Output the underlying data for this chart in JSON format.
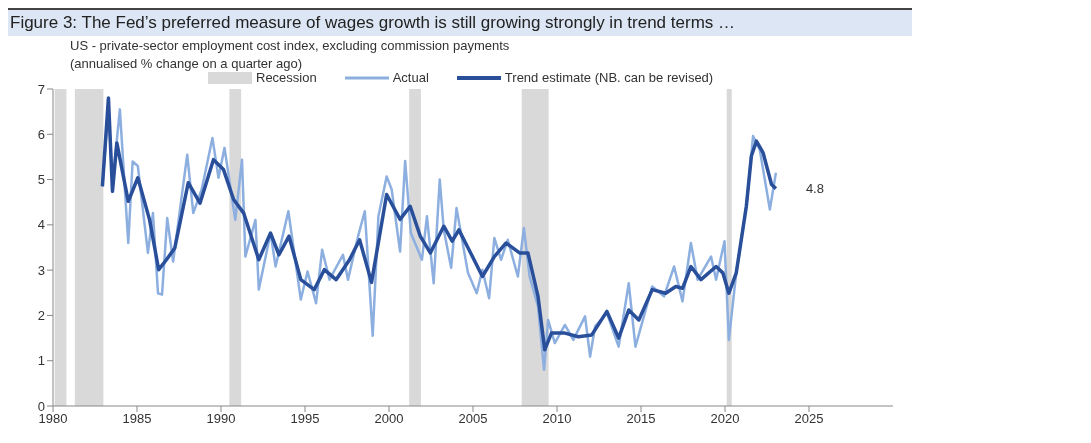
{
  "chart_data": {
    "type": "line",
    "title": "Figure 3: The Fed’s preferred measure of wages growth is still growing strongly in trend terms …",
    "subtitle": "US - private-sector employment cost index, excluding commission payments",
    "ylabel": "(annualised % change on a quarter ago)",
    "xlim": [
      1980,
      2030
    ],
    "xticks": [
      1980,
      1985,
      1990,
      1995,
      2000,
      2005,
      2010,
      2015,
      2020,
      2025
    ],
    "ylim": [
      0,
      7
    ],
    "yticks": [
      0,
      1,
      2,
      3,
      4,
      5,
      6,
      7
    ],
    "legend": "top",
    "bands": [
      {
        "axis": "x",
        "from": 1980.1,
        "to": 1980.8,
        "label": "Recession",
        "color": "#d9d9d9"
      },
      {
        "axis": "x",
        "from": 1981.3,
        "to": 1983.0,
        "color": "#d9d9d9"
      },
      {
        "axis": "x",
        "from": 1990.5,
        "to": 1991.2,
        "color": "#d9d9d9"
      },
      {
        "axis": "x",
        "from": 2001.2,
        "to": 2001.9,
        "color": "#d9d9d9"
      },
      {
        "axis": "x",
        "from": 2007.9,
        "to": 2009.5,
        "color": "#d9d9d9"
      },
      {
        "axis": "x",
        "from": 2020.1,
        "to": 2020.4,
        "color": "#d9d9d9"
      }
    ],
    "annotations": [
      {
        "text": "4.8",
        "x": 2023.03,
        "y": 4.8
      }
    ],
    "series": [
      {
        "name": "Actual",
        "color": "#8cafe0",
        "x": [
          1982.94,
          1983.3,
          1983.54,
          1983.98,
          1984.48,
          1984.74,
          1985.05,
          1985.65,
          1985.95,
          1986.25,
          1986.49,
          1986.8,
          1987.15,
          1987.99,
          1988.35,
          1988.85,
          1989.49,
          1989.85,
          1990.21,
          1990.85,
          1991.25,
          1991.45,
          1992.05,
          1992.25,
          1992.95,
          1993.25,
          1994.01,
          1994.75,
          1995.15,
          1995.66,
          1996.02,
          1996.46,
          1997.26,
          1997.56,
          1998.16,
          1998.56,
          1999.03,
          1999.37,
          1999.86,
          2000.16,
          2000.66,
          2000.96,
          2001.3,
          2001.96,
          2002.26,
          2002.66,
          2003.02,
          2003.26,
          2003.7,
          2004.02,
          2004.7,
          2005.22,
          2005.56,
          2005.96,
          2006.27,
          2006.67,
          2007.07,
          2007.67,
          2008.03,
          2008.37,
          2008.87,
          2009.23,
          2009.47,
          2009.87,
          2010.47,
          2010.97,
          2011.67,
          2011.97,
          2012.27,
          2012.97,
          2013.67,
          2014.27,
          2014.67,
          2015.67,
          2016.37,
          2016.97,
          2017.47,
          2017.97,
          2018.37,
          2019.17,
          2019.47,
          2019.97,
          2020.23,
          2020.67,
          2021.27,
          2021.67,
          2022.07,
          2022.47,
          2022.67,
          2023.03
        ],
        "values": [
          4.85,
          6.6,
          4.9,
          6.55,
          3.6,
          5.4,
          5.3,
          3.38,
          4.26,
          2.49,
          2.46,
          4.15,
          3.19,
          5.55,
          4.26,
          4.78,
          5.92,
          5.04,
          5.7,
          4.11,
          5.44,
          3.3,
          4.11,
          2.57,
          3.82,
          3.08,
          4.3,
          2.35,
          2.97,
          2.27,
          3.45,
          2.79,
          3.34,
          2.79,
          3.75,
          4.3,
          1.55,
          4.19,
          5.07,
          4.78,
          3.41,
          5.41,
          3.82,
          3.23,
          4.19,
          2.71,
          5.0,
          3.89,
          3.05,
          4.37,
          2.94,
          2.49,
          3.01,
          2.38,
          3.71,
          3.23,
          3.67,
          2.86,
          3.93,
          2.86,
          2.2,
          0.8,
          1.9,
          1.39,
          1.79,
          1.46,
          1.98,
          1.09,
          1.76,
          2.05,
          1.31,
          2.71,
          1.31,
          2.64,
          2.42,
          3.08,
          2.31,
          3.6,
          2.79,
          3.3,
          2.79,
          3.64,
          1.46,
          2.94,
          4.41,
          5.96,
          5.66,
          4.78,
          4.34,
          5.15
        ]
      },
      {
        "name": "Trend estimate (NB. can be revised)",
        "color": "#2a4f9a",
        "x": [
          1982.94,
          1983.3,
          1983.54,
          1983.8,
          1984.48,
          1985.05,
          1985.75,
          1986.29,
          1986.75,
          1987.25,
          1988.05,
          1988.75,
          1989.55,
          1990.15,
          1990.75,
          1991.35,
          1992.25,
          1992.95,
          1993.45,
          1994.05,
          1994.75,
          1995.55,
          1996.15,
          1996.85,
          1997.65,
          1998.25,
          1998.96,
          1999.86,
          2000.66,
          2001.26,
          2001.86,
          2002.46,
          2003.26,
          2003.76,
          2004.16,
          2004.86,
          2005.56,
          2006.27,
          2006.97,
          2007.77,
          2008.27,
          2008.87,
          2009.27,
          2009.67,
          2010.47,
          2011.27,
          2012.07,
          2012.97,
          2013.67,
          2014.27,
          2014.87,
          2015.67,
          2016.47,
          2017.07,
          2017.47,
          2017.97,
          2018.57,
          2019.47,
          2019.87,
          2020.23,
          2020.67,
          2021.27,
          2021.57,
          2021.87,
          2022.27,
          2022.77,
          2023.03
        ],
        "values": [
          4.85,
          6.8,
          4.74,
          5.81,
          4.52,
          5.04,
          4.11,
          3.01,
          3.23,
          3.49,
          4.93,
          4.48,
          5.44,
          5.22,
          4.56,
          4.26,
          3.23,
          3.82,
          3.34,
          3.75,
          2.79,
          2.57,
          3.01,
          2.79,
          3.23,
          3.67,
          2.73,
          4.67,
          4.12,
          4.41,
          3.75,
          3.38,
          3.97,
          3.64,
          3.89,
          3.38,
          2.86,
          3.3,
          3.6,
          3.38,
          3.38,
          2.42,
          1.24,
          1.61,
          1.61,
          1.53,
          1.57,
          2.09,
          1.5,
          2.12,
          1.9,
          2.57,
          2.49,
          2.64,
          2.6,
          3.08,
          2.79,
          3.08,
          2.94,
          2.49,
          2.94,
          4.41,
          5.52,
          5.85,
          5.59,
          4.89,
          4.8
        ]
      }
    ]
  }
}
